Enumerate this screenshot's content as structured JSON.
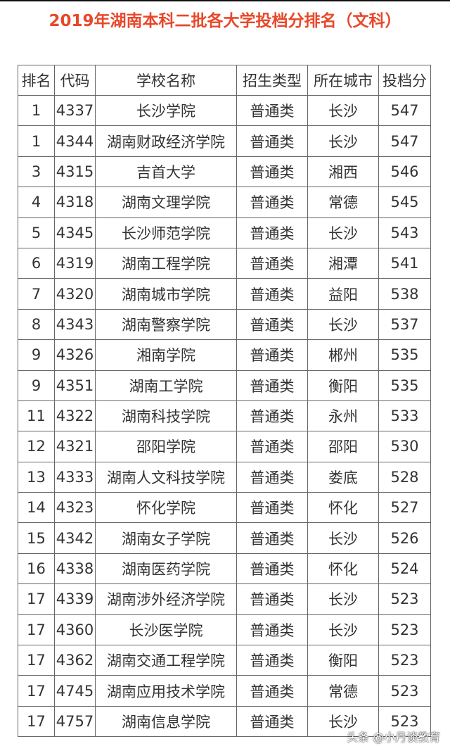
{
  "title": "2019年湖南本科二批各大学投档分排名（文科）",
  "headers": [
    "排名",
    "代码",
    "学校名称",
    "招生类型",
    "所在城市",
    "投档分"
  ],
  "rows": [
    [
      "1",
      "4337",
      "长沙学院",
      "普通类",
      "长沙",
      "547"
    ],
    [
      "1",
      "4344",
      "湖南财政经济学院",
      "普通类",
      "长沙",
      "547"
    ],
    [
      "3",
      "4315",
      "吉首大学",
      "普通类",
      "湘西",
      "546"
    ],
    [
      "4",
      "4318",
      "湖南文理学院",
      "普通类",
      "常德",
      "545"
    ],
    [
      "5",
      "4345",
      "长沙师范学院",
      "普通类",
      "长沙",
      "543"
    ],
    [
      "6",
      "4319",
      "湖南工程学院",
      "普通类",
      "湘潭",
      "541"
    ],
    [
      "7",
      "4320",
      "湖南城市学院",
      "普通类",
      "益阳",
      "538"
    ],
    [
      "8",
      "4343",
      "湖南警察学院",
      "普通类",
      "长沙",
      "537"
    ],
    [
      "9",
      "4326",
      "湘南学院",
      "普通类",
      "郴州",
      "535"
    ],
    [
      "9",
      "4351",
      "湖南工学院",
      "普通类",
      "衡阳",
      "535"
    ],
    [
      "11",
      "4322",
      "湖南科技学院",
      "普通类",
      "永州",
      "533"
    ],
    [
      "12",
      "4321",
      "邵阳学院",
      "普通类",
      "邵阳",
      "530"
    ],
    [
      "13",
      "4333",
      "湖南人文科技学院",
      "普通类",
      "娄底",
      "528"
    ],
    [
      "14",
      "4323",
      "怀化学院",
      "普通类",
      "怀化",
      "527"
    ],
    [
      "15",
      "4342",
      "湖南女子学院",
      "普通类",
      "长沙",
      "526"
    ],
    [
      "16",
      "4338",
      "湖南医药学院",
      "普通类",
      "怀化",
      "524"
    ],
    [
      "17",
      "4339",
      "湖南涉外经济学院",
      "普通类",
      "长沙",
      "523"
    ],
    [
      "17",
      "4360",
      "长沙医学院",
      "普通类",
      "长沙",
      "523"
    ],
    [
      "17",
      "4362",
      "湖南交通工程学院",
      "普通类",
      "衡阳",
      "523"
    ],
    [
      "17",
      "4745",
      "湖南应用技术学院",
      "普通类",
      "常德",
      "523"
    ],
    [
      "17",
      "4757",
      "湖南信息学院",
      "普通类",
      "长沙",
      "523"
    ]
  ],
  "watermark": "头条 @小丹谈教育",
  "colors": {
    "title": "#e8482a",
    "border": "#666666"
  }
}
